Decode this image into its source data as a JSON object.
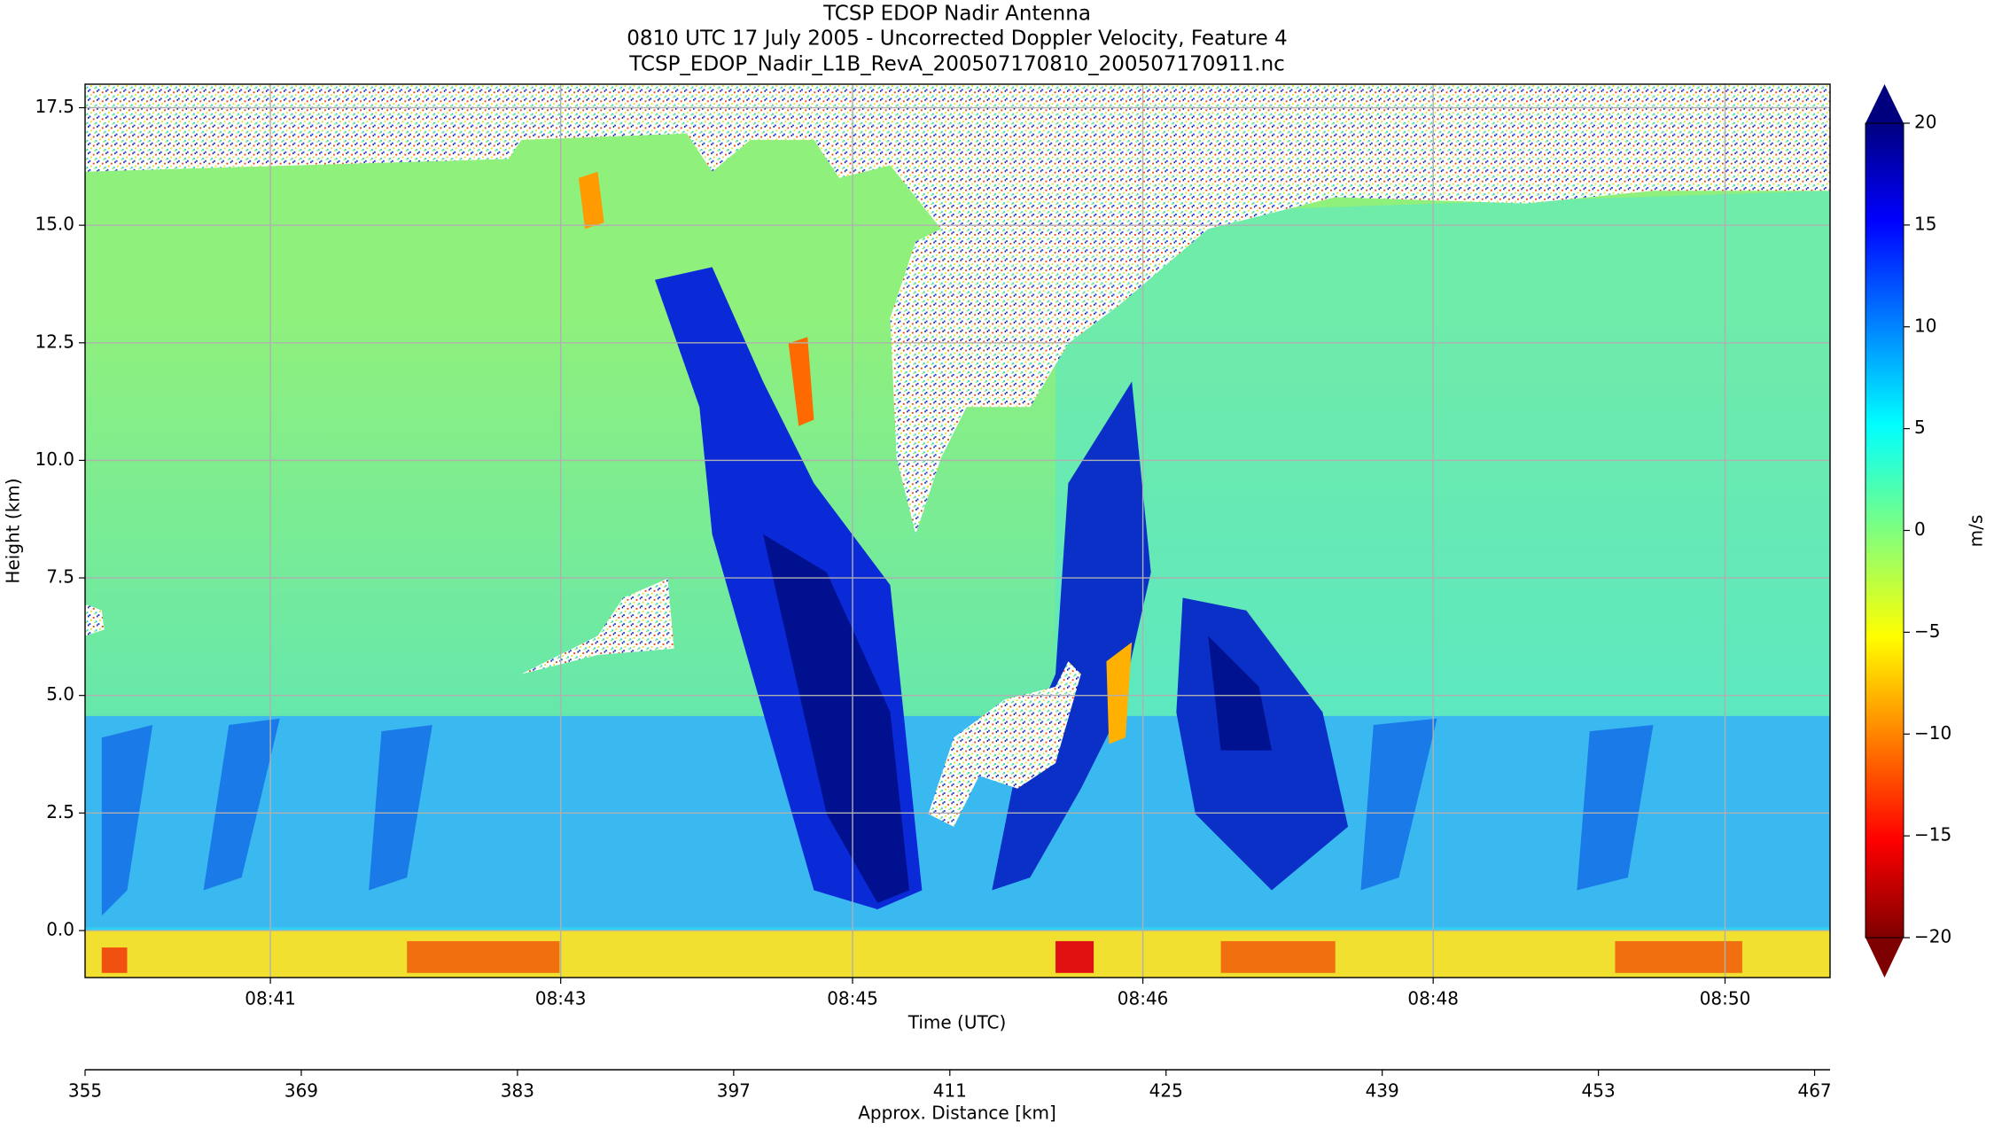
{
  "chart_data": {
    "type": "heatmap",
    "title": [
      "TCSP EDOP Nadir Antenna",
      "0810 UTC 17 July 2005 - Uncorrected Doppler Velocity, Feature 4",
      "TCSP_EDOP_Nadir_L1B_RevA_200507170810_200507170911.nc"
    ],
    "x_label": "Time (UTC)",
    "y_label": "Height (km)",
    "xlim": [
      355,
      468
    ],
    "xticks": [
      {
        "value": 367.0,
        "label": "08:41"
      },
      {
        "value": 385.8,
        "label": "08:43"
      },
      {
        "value": 404.7,
        "label": "08:45"
      },
      {
        "value": 423.5,
        "label": "08:46"
      },
      {
        "value": 442.3,
        "label": "08:48"
      },
      {
        "value": 461.2,
        "label": "08:50"
      }
    ],
    "x2_label": "Approx. Distance [km]",
    "x2ticks": [
      355,
      369,
      383,
      397,
      411,
      425,
      439,
      453,
      467
    ],
    "ylim": [
      -1,
      18
    ],
    "yticks": [
      {
        "value": 0,
        "label": "0.0"
      },
      2.5,
      {
        "value": 5,
        "label": "5.0"
      },
      7.5,
      {
        "value": 10,
        "label": "10.0"
      },
      12.5,
      {
        "value": 15,
        "label": "15.0"
      },
      17.5
    ],
    "grid": true,
    "colorbar": {
      "label": "m/s",
      "colormap": "jet",
      "extend": "both",
      "clim": [
        -20,
        20
      ],
      "ticks": [
        20,
        15,
        10,
        5,
        0,
        {
          "value": -5,
          "label": "−5"
        },
        {
          "value": -10,
          "label": "−10"
        },
        {
          "value": -15,
          "label": "−15"
        },
        {
          "value": -20,
          "label": "−20"
        }
      ]
    }
  }
}
